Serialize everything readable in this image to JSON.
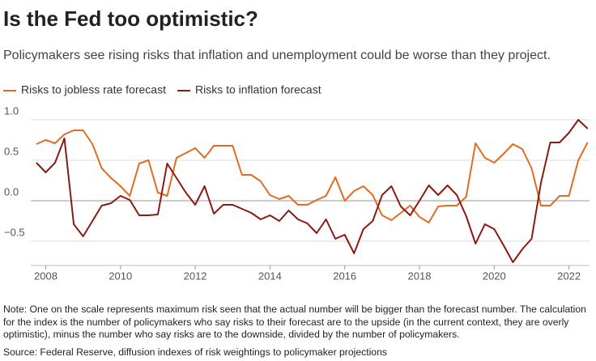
{
  "chart_data": {
    "type": "line",
    "title": "Is the Fed too optimistic?",
    "subtitle": "Policymakers see rising risks that inflation and unemployment could be worse than they project.",
    "note": "Note: One on the scale represents maximum risk seen that the actual number will be bigger than the forecast number. The calculation for the index is the number of policymakers who say risks to their forecast are to the upside (in the current context, they are overly optimistic), minus the number who say risks are to the downside, divided by the number of policymakers.",
    "source": "Source: Federal Reserve, diffusion indexes of risk weightings to policymaker projections",
    "x": [
      2007.75,
      2008,
      2008.25,
      2008.5,
      2008.75,
      2009,
      2009.25,
      2009.5,
      2009.75,
      2010,
      2010.25,
      2010.5,
      2010.75,
      2011,
      2011.25,
      2011.5,
      2011.75,
      2012,
      2012.25,
      2012.5,
      2012.75,
      2013,
      2013.25,
      2013.5,
      2013.75,
      2014,
      2014.25,
      2014.5,
      2014.75,
      2015,
      2015.25,
      2015.5,
      2015.75,
      2016,
      2016.25,
      2016.5,
      2016.75,
      2017,
      2017.25,
      2017.5,
      2017.75,
      2018,
      2018.25,
      2018.5,
      2018.75,
      2019,
      2019.25,
      2019.5,
      2019.75,
      2020,
      2020.25,
      2020.5,
      2020.75,
      2021,
      2021.25,
      2021.5,
      2021.75,
      2022,
      2022.25,
      2022.5
    ],
    "series": [
      {
        "name": "Risks to jobless rate forecast",
        "color": "#e06c24",
        "values": [
          0.7,
          0.75,
          0.71,
          0.82,
          0.87,
          0.87,
          0.7,
          0.4,
          0.28,
          0.18,
          0.06,
          0.46,
          0.5,
          0.1,
          0.06,
          0.53,
          0.59,
          0.65,
          0.53,
          0.68,
          0.68,
          0.68,
          0.32,
          0.32,
          0.24,
          0.07,
          0.02,
          0.06,
          -0.05,
          -0.05,
          0.01,
          0.06,
          0.29,
          0.0,
          0.12,
          0.18,
          0.07,
          -0.18,
          -0.24,
          -0.15,
          -0.06,
          -0.2,
          -0.27,
          -0.07,
          -0.06,
          -0.06,
          0.05,
          0.71,
          0.53,
          0.47,
          0.58,
          0.7,
          0.64,
          0.4,
          -0.06,
          -0.06,
          0.06,
          0.06,
          0.5,
          0.72
        ]
      },
      {
        "name": "Risks to inflation forecast",
        "color": "#8b1a12",
        "values": [
          0.47,
          0.35,
          0.47,
          0.77,
          -0.29,
          -0.44,
          -0.25,
          -0.06,
          -0.03,
          0.06,
          0.01,
          -0.18,
          -0.18,
          -0.17,
          0.46,
          0.28,
          0.1,
          -0.05,
          0.18,
          -0.16,
          -0.05,
          -0.05,
          -0.1,
          -0.15,
          -0.23,
          -0.18,
          -0.25,
          -0.12,
          -0.23,
          -0.28,
          -0.4,
          -0.23,
          -0.47,
          -0.42,
          -0.65,
          -0.35,
          -0.25,
          0.07,
          0.18,
          -0.07,
          -0.18,
          0.0,
          0.19,
          0.07,
          0.19,
          0.07,
          -0.19,
          -0.53,
          -0.29,
          -0.35,
          -0.55,
          -0.76,
          -0.6,
          -0.47,
          0.22,
          0.72,
          0.72,
          0.84,
          1.0,
          0.89
        ]
      }
    ],
    "xlim": [
      2007.6,
      2022.55
    ],
    "xticks": [
      2008,
      2010,
      2012,
      2014,
      2016,
      2018,
      2020,
      2022
    ],
    "ylim": [
      -0.8,
      1.1
    ],
    "yticks": [
      {
        "value": -0.5,
        "label": "−0.5"
      },
      {
        "value": 0,
        "label": "0.0"
      },
      {
        "value": 0.5,
        "label": "0.5"
      },
      {
        "value": 1,
        "label": "1.0"
      }
    ],
    "grid": true,
    "legend": "top"
  }
}
